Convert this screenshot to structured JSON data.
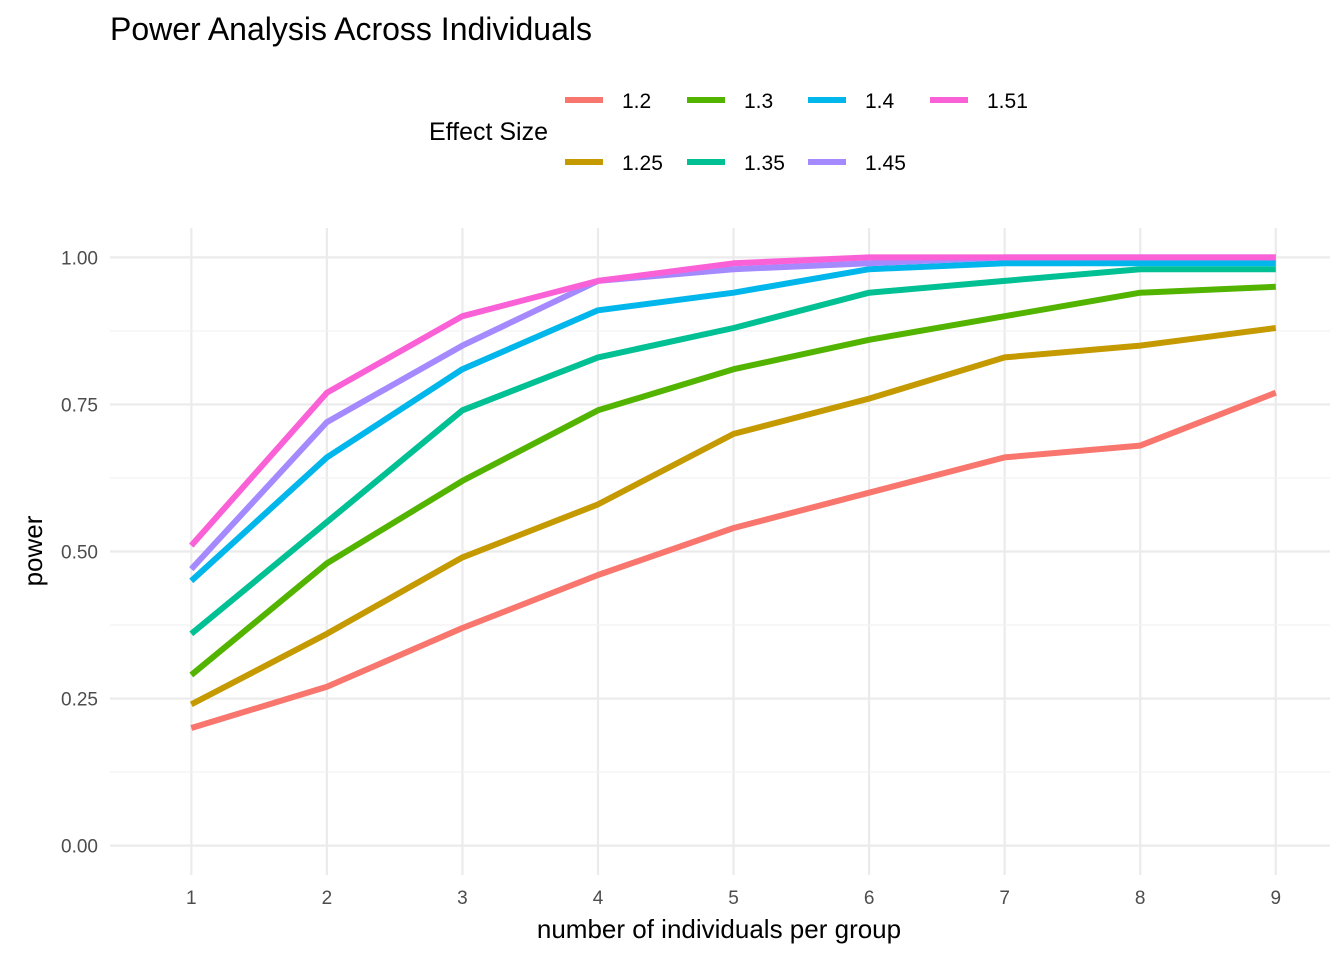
{
  "chart_data": {
    "type": "line",
    "title": "Power Analysis Across Individuals",
    "xlabel": "number of individuals per group",
    "ylabel": "power",
    "legend_title": "Effect Size",
    "legend_position": "top",
    "grid": true,
    "x": [
      1,
      2,
      3,
      4,
      5,
      6,
      7,
      8,
      9
    ],
    "xlim": [
      0.4,
      9.4
    ],
    "ylim": [
      -0.05,
      1.05
    ],
    "x_ticks": [
      "1",
      "2",
      "3",
      "4",
      "5",
      "6",
      "7",
      "8",
      "9"
    ],
    "y_ticks": [
      "0.00",
      "0.25",
      "0.50",
      "0.75",
      "1.00"
    ],
    "series": [
      {
        "name": "1.2",
        "color": "#F8766D",
        "values": [
          0.2,
          0.27,
          0.37,
          0.46,
          0.54,
          0.6,
          0.66,
          0.68,
          0.77
        ]
      },
      {
        "name": "1.25",
        "color": "#C49A00",
        "values": [
          0.24,
          0.36,
          0.49,
          0.58,
          0.7,
          0.76,
          0.83,
          0.85,
          0.88
        ]
      },
      {
        "name": "1.3",
        "color": "#53B400",
        "values": [
          0.29,
          0.48,
          0.62,
          0.74,
          0.81,
          0.86,
          0.9,
          0.94,
          0.95
        ]
      },
      {
        "name": "1.35",
        "color": "#00C094",
        "values": [
          0.36,
          0.55,
          0.74,
          0.83,
          0.88,
          0.94,
          0.96,
          0.98,
          0.98
        ]
      },
      {
        "name": "1.4",
        "color": "#00B6EB",
        "values": [
          0.45,
          0.66,
          0.81,
          0.91,
          0.94,
          0.98,
          0.99,
          0.99,
          0.99
        ]
      },
      {
        "name": "1.45",
        "color": "#A58AFF",
        "values": [
          0.47,
          0.72,
          0.85,
          0.96,
          0.98,
          0.99,
          1.0,
          1.0,
          1.0
        ]
      },
      {
        "name": "1.51",
        "color": "#FB61D7",
        "values": [
          0.51,
          0.77,
          0.9,
          0.96,
          0.99,
          1.0,
          1.0,
          1.0,
          1.0
        ]
      }
    ]
  }
}
